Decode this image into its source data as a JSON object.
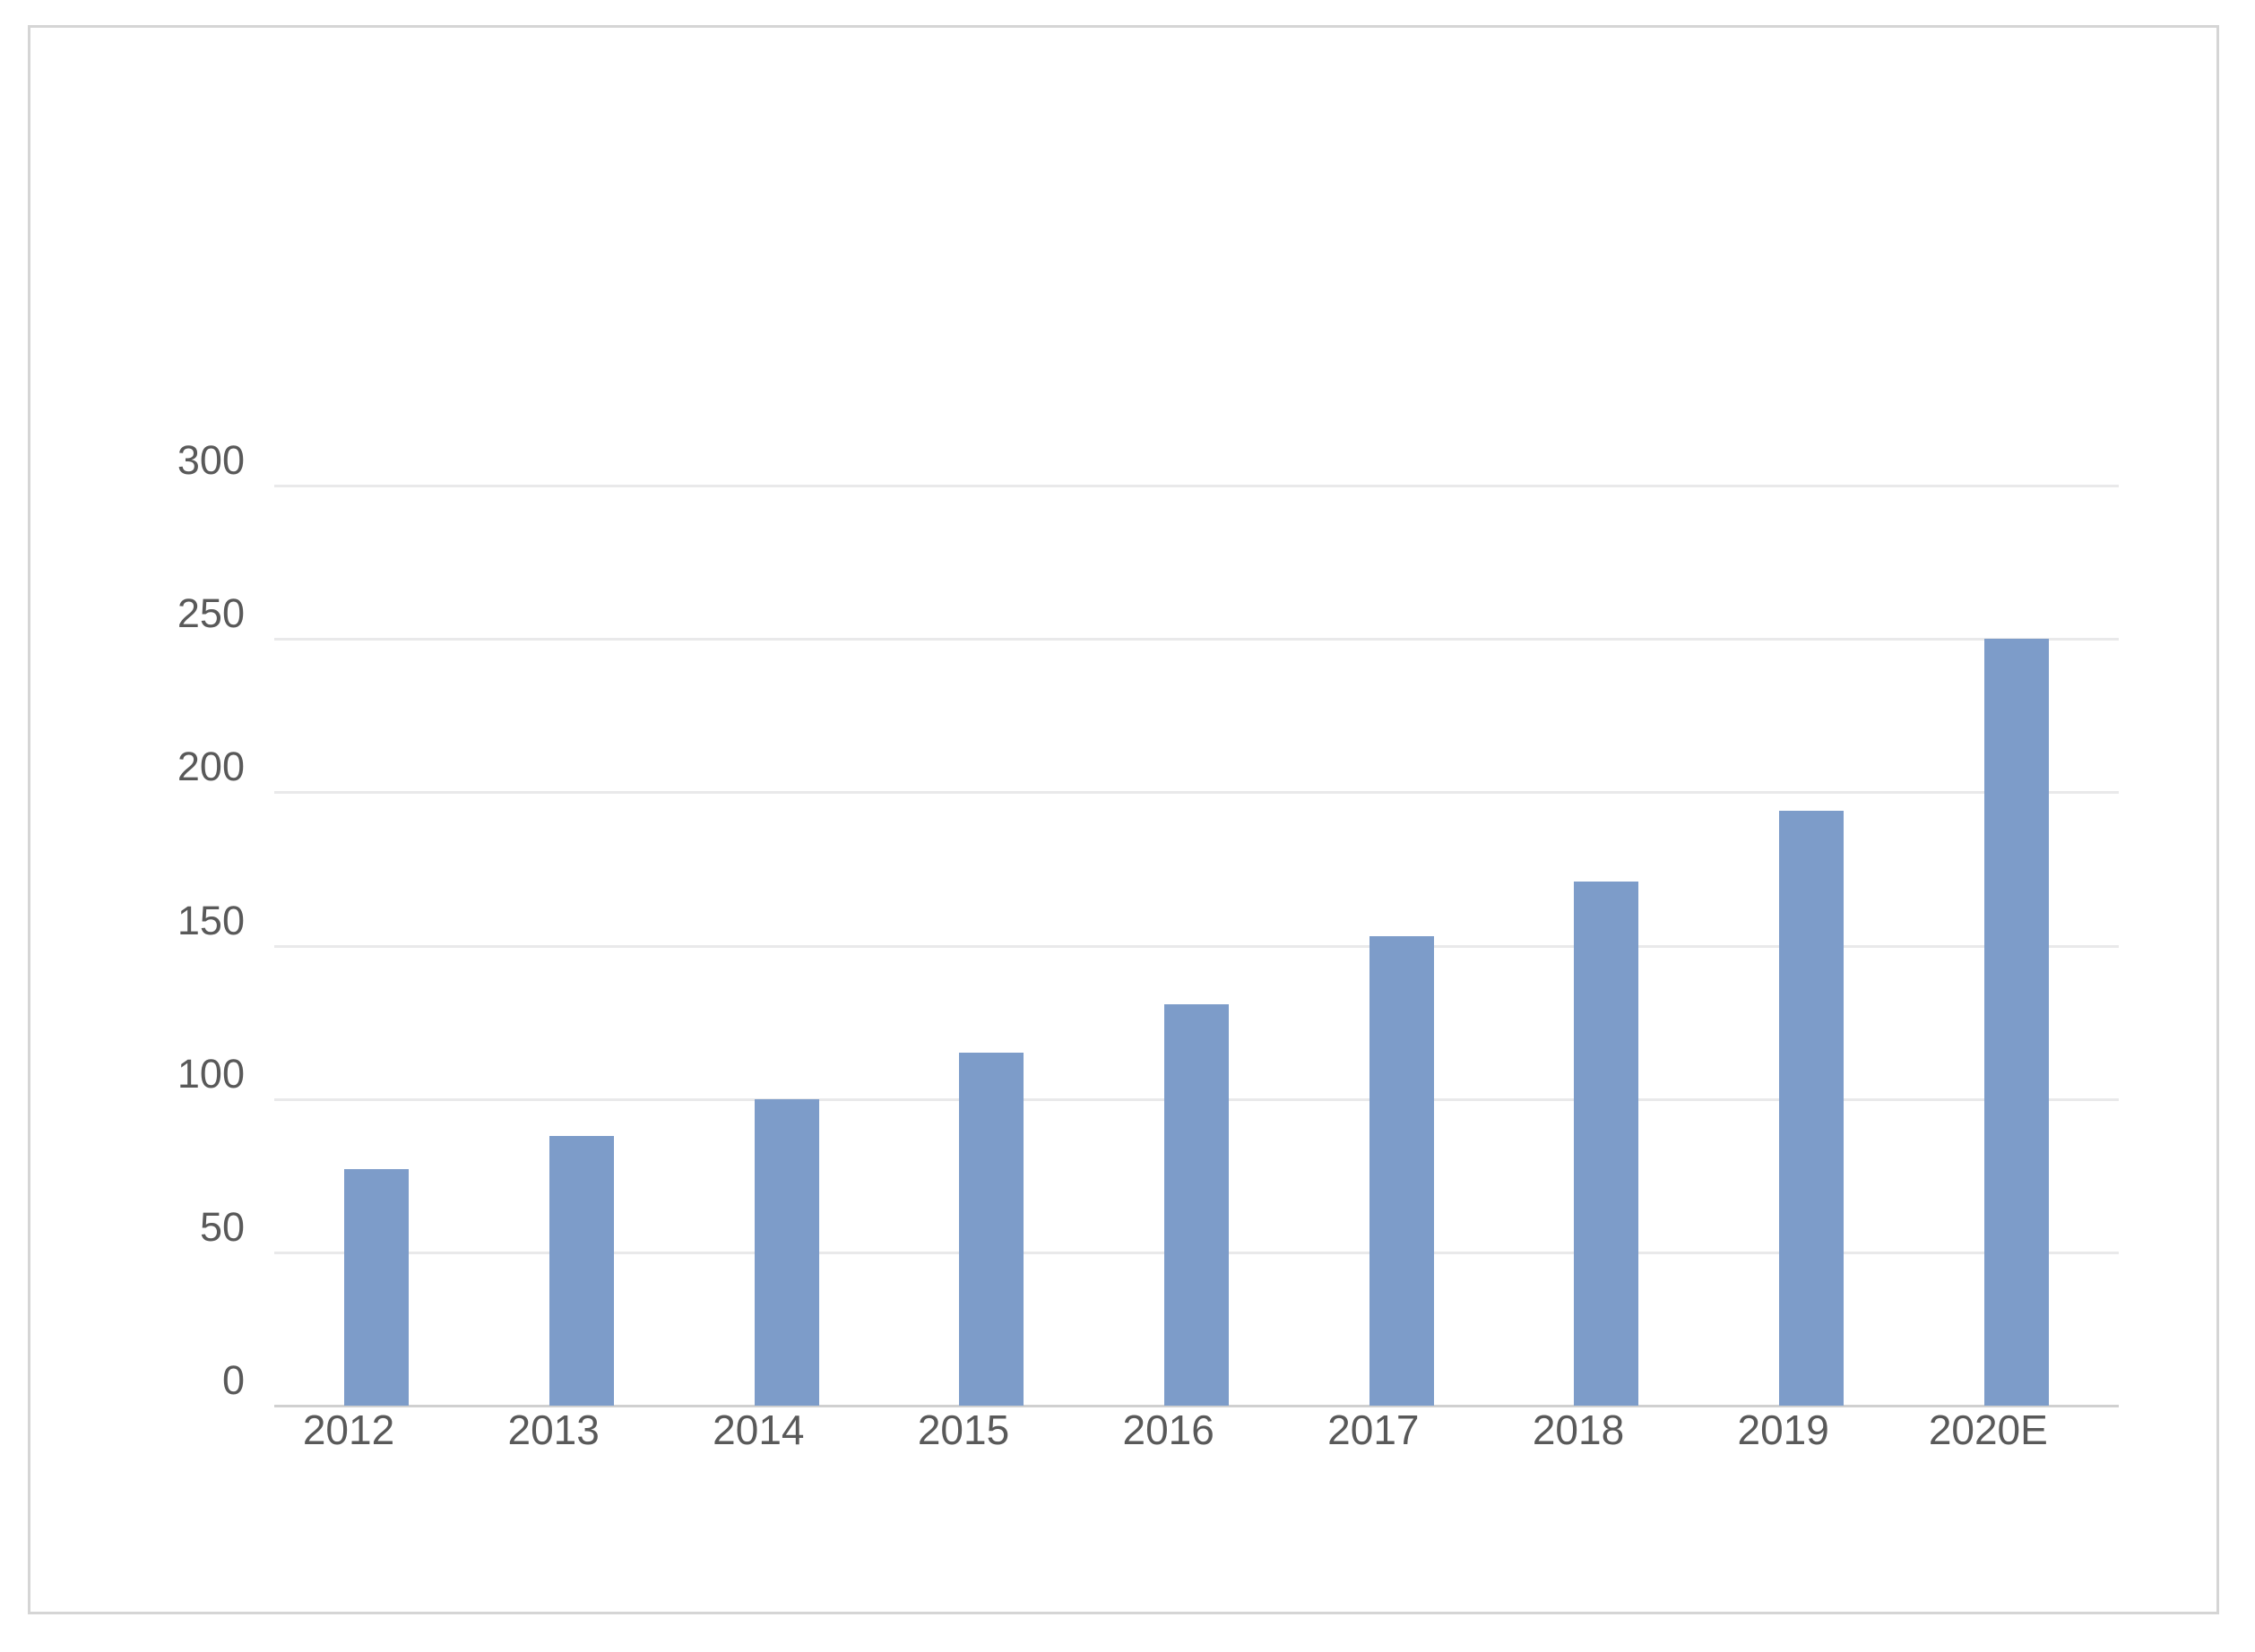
{
  "chart_data": {
    "type": "bar",
    "title": "",
    "xlabel": "",
    "ylabel": "",
    "categories": [
      "2012",
      "2013",
      "2014",
      "2015",
      "2016",
      "2017",
      "2018",
      "2019",
      "2020E"
    ],
    "values": [
      77,
      88,
      100,
      115,
      131,
      153,
      171,
      194,
      250
    ],
    "ylim": [
      0,
      300
    ],
    "yticks": [
      0,
      50,
      100,
      150,
      200,
      250,
      300
    ],
    "grid": true,
    "legend": false,
    "bar_color": "#7d9cc9",
    "gridline_color": "#e9e9ea",
    "axis_line_color": "#d0d0d0",
    "tick_label_color": "#595959",
    "frame_border_color": "#d5d5d5",
    "background_color": "#ffffff"
  }
}
